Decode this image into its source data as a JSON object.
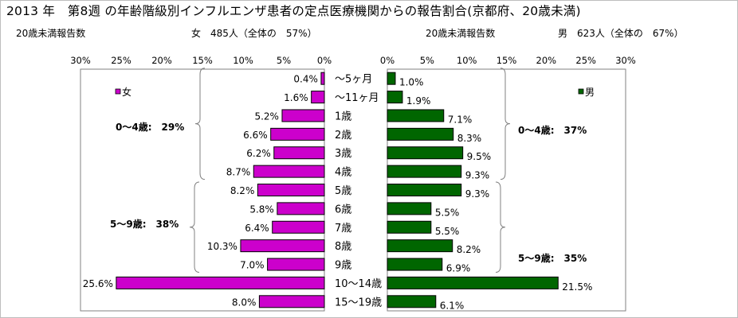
{
  "title": "2013 年　第8週 の年齢階級別インフルエンザ患者の定点医療機関からの報告割合(京都府、20歳未満)",
  "female_header": {
    "label": "20歳未満報告数",
    "summary": "女　485人（全体の　57%）"
  },
  "male_header": {
    "label": "20歳未満報告数",
    "summary": "男　623人（全体の　67%）"
  },
  "colors": {
    "female": "#cc00cc",
    "male": "#006600",
    "border": "#000000"
  },
  "chart_data": [
    {
      "type": "bar",
      "orientation": "horizontal",
      "direction": "right-to-left",
      "legend": "女",
      "legend_position": "top-left",
      "categories": [
        "～5ヶ月",
        "～11ヶ月",
        "1歳",
        "2歳",
        "3歳",
        "4歳",
        "5歳",
        "6歳",
        "7歳",
        "8歳",
        "9歳",
        "10～14歳",
        "15～19歳"
      ],
      "values": [
        0.4,
        1.6,
        5.2,
        6.6,
        6.2,
        8.7,
        8.2,
        5.8,
        6.4,
        10.3,
        7.0,
        25.6,
        8.0
      ],
      "value_labels": [
        "0.4%",
        "1.6%",
        "5.2%",
        "6.6%",
        "6.2%",
        "8.7%",
        "8.2%",
        "5.8%",
        "6.4%",
        "10.3%",
        "7.0%",
        "25.6%",
        "8.0%"
      ],
      "xlim": [
        0,
        30
      ],
      "ticks": [
        0,
        5,
        10,
        15,
        20,
        25,
        30
      ],
      "tick_labels": [
        "0%",
        "5%",
        "10%",
        "15%",
        "20%",
        "25%",
        "30%"
      ],
      "annotations": [
        {
          "text": "0～4歳:　29%",
          "from": "～5ヶ月",
          "to": "4歳"
        },
        {
          "text": "5～9歳:　38%",
          "from": "5歳",
          "to": "9歳"
        }
      ]
    },
    {
      "type": "bar",
      "orientation": "horizontal",
      "direction": "left-to-right",
      "legend": "男",
      "legend_position": "top-right",
      "categories": [
        "～5ヶ月",
        "～11ヶ月",
        "1歳",
        "2歳",
        "3歳",
        "4歳",
        "5歳",
        "6歳",
        "7歳",
        "8歳",
        "9歳",
        "10～14歳",
        "15～19歳"
      ],
      "values": [
        1.0,
        1.9,
        7.1,
        8.3,
        9.5,
        9.3,
        9.3,
        5.5,
        5.5,
        8.2,
        6.9,
        21.5,
        6.1
      ],
      "value_labels": [
        "1.0%",
        "1.9%",
        "7.1%",
        "8.3%",
        "9.5%",
        "9.3%",
        "9.3%",
        "5.5%",
        "5.5%",
        "8.2%",
        "6.9%",
        "21.5%",
        "6.1%"
      ],
      "xlim": [
        0,
        30
      ],
      "ticks": [
        0,
        5,
        10,
        15,
        20,
        25,
        30
      ],
      "tick_labels": [
        "0%",
        "5%",
        "10%",
        "15%",
        "20%",
        "25%",
        "30%"
      ],
      "annotations": [
        {
          "text": "0～4歳:　37%",
          "from": "～5ヶ月",
          "to": "4歳"
        },
        {
          "text": "5～9歳:　35%",
          "from": "5歳",
          "to": "9歳"
        }
      ]
    }
  ]
}
